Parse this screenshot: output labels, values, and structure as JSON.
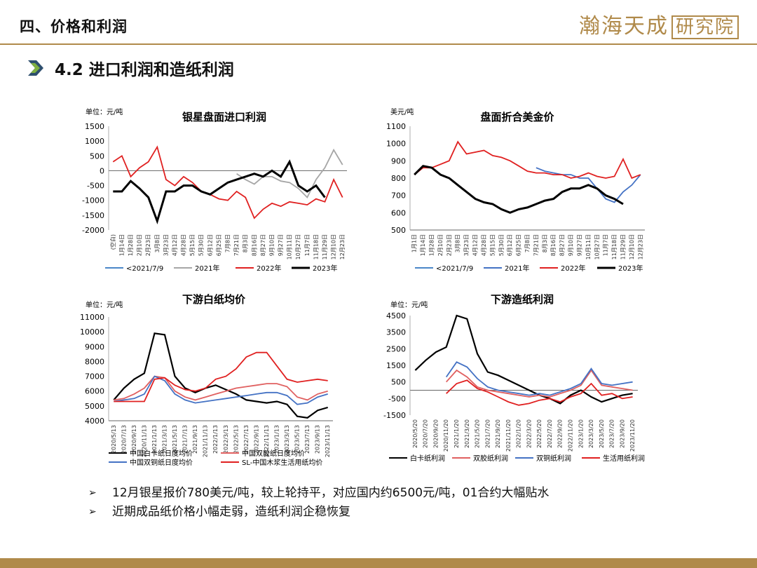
{
  "header": {
    "title": "四、价格和利润",
    "logo_text": "瀚海天成",
    "logo_box": "研究院"
  },
  "section": {
    "title": "4.2 进口利润和造纸利润"
  },
  "bullets": [
    "12月银星报价780美元/吨，较上轮持平，对应国内约6500元/吨，01合约大幅贴水",
    "近期成品纸价格小幅走弱，造纸利润企稳恢复"
  ],
  "chart_data": [
    {
      "type": "line",
      "title": "银星盘面进口利润",
      "unit_label": "单位：元/吨",
      "ylim": [
        -2000,
        1500
      ],
      "yticks": [
        1500,
        1000,
        500,
        0,
        -500,
        -1000,
        -1500,
        -2000
      ],
      "xticks": [
        "(空白)",
        "1月14日",
        "1月28日",
        "2月10日",
        "2月23日",
        "3月8日",
        "3月23日",
        "4月12日",
        "4月28日",
        "5月15日",
        "5月30日",
        "6月12日",
        "6月25日",
        "7月8日",
        "7月21日",
        "8月3日",
        "8月16日",
        "8月27日",
        "9月10日",
        "9月27日",
        "10月11日",
        "10月27日",
        "11月7日",
        "11月18日",
        "11月29日",
        "12月10日",
        "12月23日"
      ],
      "legend": [
        "<2021/7/9",
        "2021年",
        "2022年",
        "2023年"
      ],
      "colors": [
        "#4a86c8",
        "#a6a6a6",
        "#e02020",
        "#000000"
      ],
      "series": [
        {
          "name": "<2021/7/9",
          "values": []
        },
        {
          "name": "2021年",
          "values": [
            null,
            null,
            null,
            null,
            null,
            null,
            null,
            null,
            null,
            null,
            null,
            null,
            null,
            null,
            -100,
            -300,
            -450,
            -200,
            -200,
            -350,
            -400,
            -600,
            -900,
            -300,
            100,
            700,
            200
          ]
        },
        {
          "name": "2022年",
          "values": [
            300,
            500,
            -200,
            100,
            300,
            800,
            -300,
            -500,
            -200,
            -400,
            -700,
            -800,
            -950,
            -1000,
            -700,
            -900,
            -1600,
            -1300,
            -1100,
            -1200,
            -1050,
            -1100,
            -1150,
            -950,
            -1050,
            -300,
            -900
          ]
        },
        {
          "name": "2023年",
          "values": [
            -700,
            -700,
            -350,
            -600,
            -900,
            -1700,
            -700,
            -700,
            -500,
            -500,
            -700,
            -800,
            -600,
            -400,
            -300,
            -200,
            -100,
            -200,
            0,
            -200,
            300,
            -500,
            -700,
            -500,
            -900,
            null,
            null
          ]
        }
      ]
    },
    {
      "type": "line",
      "title": "盘面折合美金价",
      "unit_label": "美元/吨",
      "ylim": [
        500,
        1100
      ],
      "yticks": [
        1100,
        1000,
        900,
        800,
        700,
        600,
        500
      ],
      "xticks": [
        "1月1日",
        "1月14日",
        "1月28日",
        "2月10日",
        "2月23日",
        "3月8日",
        "3月23日",
        "4月12日",
        "4月28日",
        "5月15日",
        "5月30日",
        "6月12日",
        "6月25日",
        "7月8日",
        "7月21日",
        "8月3日",
        "8月16日",
        "8月27日",
        "9月10日",
        "9月27日",
        "10月11日",
        "10月27日",
        "11月7日",
        "11月18日",
        "11月29日",
        "12月10日",
        "12月23日"
      ],
      "legend": [
        "<2021/7/9",
        "2021年",
        "2022年",
        "2023年"
      ],
      "colors": [
        "#4a86c8",
        "#4472c4",
        "#e02020",
        "#000000"
      ],
      "series": [
        {
          "name": "<2021/7/9",
          "values": []
        },
        {
          "name": "2021年",
          "values": [
            null,
            null,
            null,
            null,
            null,
            null,
            null,
            null,
            null,
            null,
            null,
            null,
            null,
            null,
            860,
            840,
            830,
            820,
            820,
            800,
            800,
            740,
            680,
            660,
            720,
            760,
            820
          ]
        },
        {
          "name": "2022年",
          "values": [
            820,
            860,
            860,
            880,
            900,
            1010,
            940,
            950,
            960,
            930,
            920,
            900,
            870,
            840,
            830,
            830,
            820,
            820,
            800,
            810,
            830,
            810,
            800,
            810,
            910,
            800,
            820
          ]
        },
        {
          "name": "2023年",
          "values": [
            820,
            870,
            860,
            820,
            800,
            760,
            720,
            680,
            660,
            650,
            620,
            600,
            620,
            630,
            650,
            670,
            680,
            720,
            740,
            740,
            760,
            740,
            700,
            680,
            650,
            null,
            null
          ]
        }
      ]
    },
    {
      "type": "line",
      "title": "下游白纸均价",
      "unit_label": "单位：元/吨",
      "ylim": [
        4000,
        11000
      ],
      "yticks": [
        11000,
        10000,
        9000,
        8000,
        7000,
        6000,
        5000,
        4000
      ],
      "xticks": [
        "2020/5/13",
        "2020/7/13",
        "2020/9/13",
        "2020/11/13",
        "2021/1/13",
        "2021/3/13",
        "2021/5/13",
        "2021/7/13",
        "2021/9/13",
        "2021/11/13",
        "2022/1/13",
        "2022/3/13",
        "2022/5/13",
        "2022/7/13",
        "2022/9/13",
        "2022/11/13",
        "2023/1/13",
        "2023/3/13",
        "2023/5/13",
        "2023/7/13",
        "2023/9/13",
        "2023/11/13"
      ],
      "legend": [
        "中国白卡纸日度均价",
        "中国双胶纸日度均价",
        "中国双铜纸日度均价",
        "SL-中国木浆生活用纸均价"
      ],
      "colors": [
        "#000000",
        "#e06060",
        "#4472c4",
        "#e02020"
      ],
      "series": [
        {
          "name": "中国白卡纸日度均价",
          "values": [
            5400,
            6200,
            6800,
            7200,
            9900,
            9800,
            7000,
            6200,
            5900,
            6200,
            6400,
            6100,
            5800,
            5400,
            5300,
            5200,
            5300,
            5100,
            4300,
            4200,
            4700,
            4900
          ]
        },
        {
          "name": "中国双胶纸日度均价",
          "values": [
            5400,
            5500,
            5800,
            6200,
            7000,
            6900,
            6000,
            5600,
            5400,
            5600,
            5800,
            6000,
            6200,
            6300,
            6400,
            6500,
            6500,
            6300,
            5600,
            5400,
            5800,
            6000
          ]
        },
        {
          "name": "中国双铜纸日度均价",
          "values": [
            5300,
            5400,
            5500,
            5800,
            7000,
            6700,
            5800,
            5400,
            5200,
            5300,
            5400,
            5500,
            5600,
            5700,
            5800,
            5900,
            5900,
            5700,
            5100,
            5200,
            5600,
            5800
          ]
        },
        {
          "name": "SL-中国木浆生活用纸均价",
          "values": [
            5300,
            5300,
            5300,
            5300,
            6800,
            6900,
            6400,
            6100,
            6000,
            6200,
            6800,
            7000,
            7500,
            8300,
            8600,
            8600,
            7700,
            6800,
            6600,
            6700,
            6800,
            6700
          ]
        }
      ]
    },
    {
      "type": "line",
      "title": "下游造纸利润",
      "unit_label": "单位：元/吨",
      "ylim": [
        -1500,
        4500
      ],
      "yticks": [
        4500,
        3500,
        2500,
        1500,
        500,
        -500,
        -1500
      ],
      "xticks": [
        "2020/5/20",
        "2020/7/20",
        "2020/9/20",
        "2020/11/20",
        "2021/1/20",
        "2021/3/20",
        "2021/5/20",
        "2021/7/20",
        "2021/9/20",
        "2021/11/20",
        "2022/1/20",
        "2022/3/20",
        "2022/5/20",
        "2022/7/20",
        "2022/9/20",
        "2022/11/20",
        "2023/1/20",
        "2023/3/20",
        "2023/5/20",
        "2023/7/20",
        "2023/9/20",
        "2023/11/20"
      ],
      "legend": [
        "白卡纸利润",
        "双胶纸利润",
        "双铜纸利润",
        "生活用纸利润"
      ],
      "colors": [
        "#000000",
        "#e06060",
        "#4472c4",
        "#e02020"
      ],
      "series": [
        {
          "name": "白卡纸利润",
          "values": [
            1200,
            1800,
            2300,
            2600,
            4500,
            4300,
            2200,
            1100,
            900,
            600,
            300,
            0,
            -300,
            -500,
            -800,
            -300,
            0,
            -400,
            -700,
            -500,
            -300,
            -200
          ]
        },
        {
          "name": "双胶纸利润",
          "values": [
            null,
            null,
            null,
            500,
            1200,
            800,
            200,
            0,
            -100,
            -200,
            -300,
            -400,
            -300,
            -400,
            -200,
            0,
            300,
            1200,
            300,
            200,
            100,
            0
          ]
        },
        {
          "name": "双铜纸利润",
          "values": [
            null,
            null,
            null,
            800,
            1700,
            1400,
            700,
            200,
            0,
            -100,
            -200,
            -300,
            -200,
            -300,
            -100,
            100,
            400,
            1300,
            400,
            300,
            400,
            500
          ]
        },
        {
          "name": "生活用纸利润",
          "values": [
            null,
            null,
            null,
            -200,
            400,
            600,
            100,
            -100,
            -400,
            -700,
            -900,
            -800,
            -600,
            -500,
            -700,
            -400,
            -200,
            400,
            -300,
            -200,
            -500,
            -400
          ]
        }
      ]
    }
  ]
}
